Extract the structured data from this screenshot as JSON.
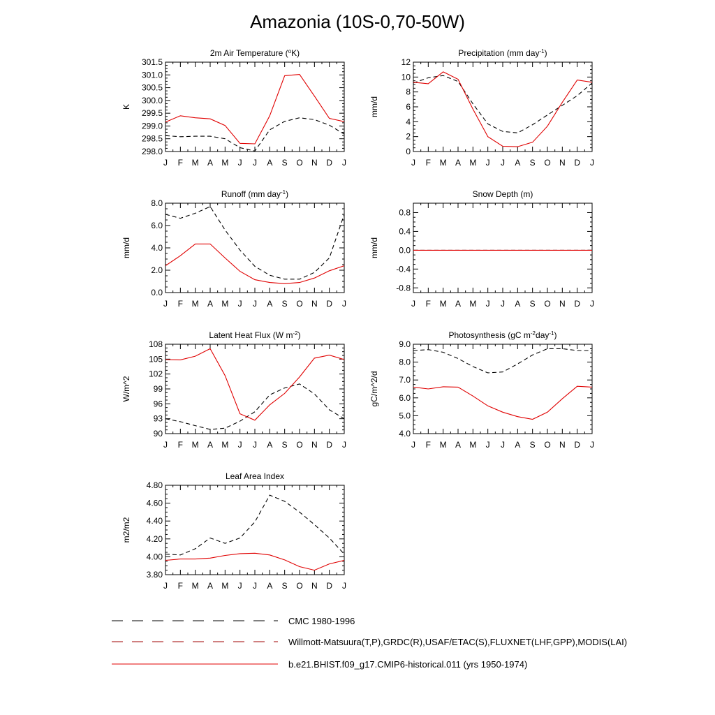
{
  "title": "Amazonia (10S-0,70-50W)",
  "months": [
    "J",
    "F",
    "M",
    "A",
    "M",
    "J",
    "J",
    "A",
    "S",
    "O",
    "N",
    "D",
    "J"
  ],
  "colors": {
    "model": "#e00000",
    "obs": "#000000",
    "cmc": "#000000"
  },
  "legend": [
    {
      "label": "CMC 1980-1996",
      "style": "dashed",
      "color": "#000000"
    },
    {
      "label": "Willmott-Matsuura(T,P),GRDC(R),USAF/ETAC(S),FLUXNET(LHF,GPP),MODIS(LAI)",
      "style": "dashed",
      "color": "#a00000"
    },
    {
      "label": "b.e21.BHIST.f09_g17.CMIP6-historical.011 (yrs 1950-1974)",
      "style": "solid",
      "color": "#e00000"
    }
  ],
  "chart_data": [
    {
      "type": "line",
      "title_main": "2m Air Temperature (",
      "title_sup": "o",
      "title_post": "K)",
      "ylabel": "K",
      "ylim": [
        298.0,
        301.5
      ],
      "yticks": [
        "298.0",
        "298.5",
        "299.0",
        "299.5",
        "300.0",
        "300.5",
        "301.0",
        "301.5"
      ],
      "series": [
        {
          "style": "solid",
          "values": [
            299.15,
            299.4,
            299.32,
            299.28,
            299.02,
            298.32,
            298.3,
            299.4,
            300.97,
            301.02,
            300.17,
            299.3,
            299.17
          ]
        },
        {
          "style": "dashed",
          "values": [
            298.62,
            298.58,
            298.6,
            298.6,
            298.5,
            298.15,
            298.02,
            298.85,
            299.18,
            299.32,
            299.25,
            299.03,
            298.68
          ]
        }
      ]
    },
    {
      "type": "line",
      "title_main": "Precipitation (mm day",
      "title_sup": "-1",
      "title_post": ")",
      "ylabel": "mm/d",
      "ylim": [
        0,
        12
      ],
      "yticks": [
        "0",
        "2",
        "4",
        "6",
        "8",
        "10",
        "12"
      ],
      "series": [
        {
          "style": "solid",
          "values": [
            9.3,
            9.1,
            10.7,
            9.7,
            5.7,
            2.0,
            0.7,
            0.65,
            1.25,
            3.4,
            6.6,
            9.6,
            9.3
          ]
        },
        {
          "style": "dashed",
          "values": [
            9.2,
            9.9,
            10.2,
            9.4,
            6.4,
            3.7,
            2.7,
            2.5,
            3.6,
            4.9,
            6.2,
            7.5,
            9.2
          ]
        }
      ]
    },
    {
      "type": "line",
      "title_main": "Runoff (mm day",
      "title_sup": "-1",
      "title_post": ")",
      "ylabel": "mm/d",
      "ylim": [
        0,
        8
      ],
      "yticks": [
        "0.0",
        "2.0",
        "4.0",
        "6.0",
        "8.0"
      ],
      "series": [
        {
          "style": "solid",
          "values": [
            2.4,
            3.3,
            4.35,
            4.35,
            3.1,
            1.9,
            1.15,
            0.9,
            0.8,
            0.9,
            1.3,
            1.95,
            2.4
          ]
        },
        {
          "style": "dashed",
          "values": [
            7.0,
            6.65,
            7.1,
            7.7,
            5.6,
            3.8,
            2.35,
            1.55,
            1.2,
            1.2,
            1.8,
            3.1,
            7.0
          ]
        }
      ]
    },
    {
      "type": "line",
      "title_main": "Snow Depth (m)",
      "title_sup": "",
      "title_post": "",
      "ylabel": "mm/d",
      "ylim": [
        -0.9,
        1.0
      ],
      "yticks": [
        "-0.8",
        "-0.4",
        "0.0",
        "0.4",
        "0.8"
      ],
      "ytick_values": [
        -0.8,
        -0.4,
        0.0,
        0.4,
        0.8
      ],
      "series": [
        {
          "style": "solid",
          "values": [
            0,
            0,
            0,
            0,
            0,
            0,
            0,
            0,
            0,
            0,
            0,
            0,
            0
          ]
        },
        {
          "style": "dashed",
          "values": [
            0,
            0,
            0,
            0,
            0,
            0,
            0,
            0,
            0,
            0,
            0,
            0,
            0
          ]
        }
      ]
    },
    {
      "type": "line",
      "title_main": "Latent Heat Flux (W m",
      "title_sup": "-2",
      "title_post": ")",
      "ylabel": "W/m^2",
      "ylim": [
        90,
        108
      ],
      "yticks": [
        "90",
        "93",
        "96",
        "99",
        "102",
        "105",
        "108"
      ],
      "series": [
        {
          "style": "solid",
          "values": [
            104.9,
            104.85,
            105.6,
            107.1,
            101.7,
            94.0,
            92.7,
            95.8,
            98.1,
            101.4,
            105.2,
            105.8,
            104.9
          ]
        },
        {
          "style": "dashed",
          "values": [
            93.0,
            92.4,
            91.6,
            90.85,
            91.1,
            92.5,
            94.4,
            97.8,
            99.2,
            100.0,
            98.0,
            94.8,
            93.0
          ]
        }
      ]
    },
    {
      "type": "line",
      "title_main": "Photosynthesis (gC m",
      "title_sup": "-2",
      "title_mid": "day",
      "title_sup2": "-1",
      "title_post": ")",
      "ylabel": "gC/m^2/d",
      "ylim": [
        4.0,
        9.0
      ],
      "yticks": [
        "4.0",
        "5.0",
        "6.0",
        "7.0",
        "8.0",
        "9.0"
      ],
      "series": [
        {
          "style": "solid",
          "values": [
            6.6,
            6.5,
            6.62,
            6.6,
            6.1,
            5.55,
            5.2,
            4.95,
            4.8,
            5.2,
            5.95,
            6.65,
            6.6
          ]
        },
        {
          "style": "dashed",
          "values": [
            8.65,
            8.7,
            8.55,
            8.2,
            7.75,
            7.4,
            7.45,
            7.9,
            8.4,
            8.75,
            8.75,
            8.65,
            8.65
          ]
        }
      ]
    },
    {
      "type": "line",
      "title_main": "Leaf Area Index",
      "title_sup": "",
      "title_post": "",
      "ylabel": "m2/m2",
      "ylim": [
        3.8,
        4.8
      ],
      "yticks": [
        "3.80",
        "4.00",
        "4.20",
        "4.40",
        "4.60",
        "4.80"
      ],
      "series": [
        {
          "style": "solid",
          "values": [
            3.96,
            3.975,
            3.975,
            3.985,
            4.015,
            4.035,
            4.04,
            4.02,
            3.965,
            3.89,
            3.85,
            3.92,
            3.96
          ]
        },
        {
          "style": "dashed",
          "values": [
            4.03,
            4.02,
            4.09,
            4.21,
            4.15,
            4.21,
            4.39,
            4.69,
            4.62,
            4.5,
            4.36,
            4.21,
            4.03
          ]
        }
      ]
    }
  ]
}
